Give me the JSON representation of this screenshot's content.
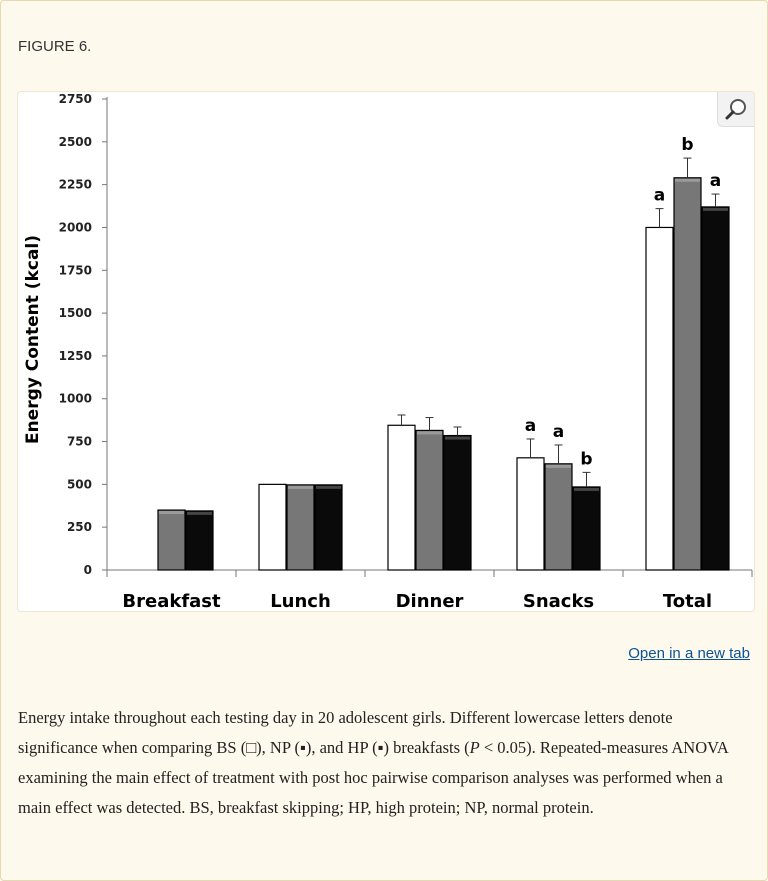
{
  "figure": {
    "label": "FIGURE 6.",
    "open_link": "Open in a new tab",
    "caption": {
      "p1": "Energy intake throughout each testing day in 20 adolescent girls. Different lowercase letters denote significance when comparing BS (□), NP (▪), and HP (▪) breakfasts (",
      "p_symbol": "P",
      "p2": " < 0.05). Repeated-measures ANOVA examining the main effect of treatment with post hoc pairwise comparison analyses was performed when a main effect was detected. BS, breakfast skipping; HP, high protein; NP, normal protein."
    }
  },
  "chart_data": {
    "type": "bar",
    "title": "",
    "xlabel": "",
    "ylabel": "Energy Content (kcal)",
    "ylim": [
      0,
      2750
    ],
    "yticks": [
      0,
      250,
      500,
      750,
      1000,
      1250,
      1500,
      1750,
      2000,
      2250,
      2500,
      2750
    ],
    "categories": [
      "Breakfast",
      "Lunch",
      "Dinner",
      "Snacks",
      "Total"
    ],
    "series": [
      {
        "name": "BS",
        "color": "#ffffff",
        "values": [
          0,
          500,
          845,
          655,
          2000
        ],
        "errors": [
          0,
          0,
          60,
          110,
          110
        ],
        "letters": [
          "",
          "",
          "",
          "a",
          "a"
        ]
      },
      {
        "name": "NP",
        "color": "#777777",
        "values": [
          350,
          497,
          815,
          620,
          2290
        ],
        "errors": [
          0,
          0,
          75,
          110,
          115
        ],
        "letters": [
          "",
          "",
          "",
          "a",
          "b"
        ]
      },
      {
        "name": "HP",
        "color": "#0a0a0a",
        "values": [
          345,
          497,
          785,
          485,
          2120
        ],
        "errors": [
          0,
          0,
          50,
          85,
          75
        ],
        "letters": [
          "",
          "",
          "",
          "b",
          "a"
        ]
      }
    ]
  }
}
